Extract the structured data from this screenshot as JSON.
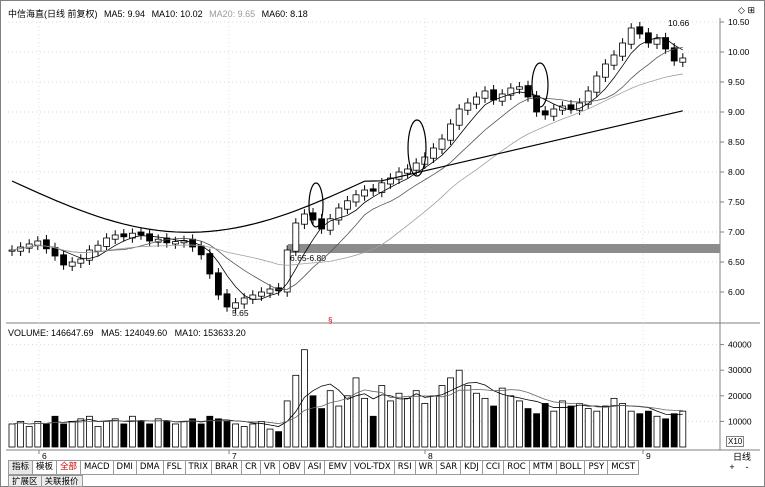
{
  "header": {
    "stock_name": "中信海直(日线 前复权)",
    "ma_items": [
      {
        "label": "MA5: 9.94",
        "color": "#000000"
      },
      {
        "label": "MA10: 10.02",
        "color": "#000000"
      },
      {
        "label": "MA20: 9.65",
        "color": "#9a9a9a"
      },
      {
        "label": "MA60: 8.18",
        "color": "#000000"
      }
    ],
    "window_icons": "◇ ⊞"
  },
  "price_axis": {
    "ticks": [
      "10.50",
      "10.00",
      "9.50",
      "9.00",
      "8.50",
      "8.00",
      "7.50",
      "7.00",
      "6.50",
      "6.00"
    ]
  },
  "annotations": {
    "low_label": "5.65",
    "high_label": "10.66",
    "zone_label": "6.65-6.80",
    "marker": "§"
  },
  "date_axis": {
    "labels": [
      "6",
      "7",
      "8",
      "9"
    ]
  },
  "volume": {
    "legend": [
      {
        "label": "VOLUME: 146647.69",
        "color": "#000000"
      },
      {
        "label": "MA5: 124049.60",
        "color": "#000000"
      },
      {
        "label": "MA10: 153633.20",
        "color": "#000000"
      }
    ],
    "ticks": [
      "40000",
      "30000",
      "20000",
      "10000"
    ],
    "scale_tag": "X10"
  },
  "period": {
    "label": "日线",
    "plus": "+",
    "minus": "-"
  },
  "indicator_tabs": [
    "指标",
    "模板",
    "全部",
    "MACD",
    "DMI",
    "DMA",
    "FSL",
    "TRIX",
    "BRAR",
    "CR",
    "VR",
    "OBV",
    "ASI",
    "EMV",
    "VOL-TDX",
    "RSI",
    "WR",
    "SAR",
    "KDJ",
    "CCI",
    "ROC",
    "MTM",
    "BOLL",
    "PSY",
    "MCST"
  ],
  "bottom_tabs": [
    "扩展区",
    "关联报价"
  ],
  "colors": {
    "up": "#000000",
    "down": "#000000",
    "ma_gray": "#a0a0a0",
    "zone": "#8c8c8c",
    "accent_red": "#d00000"
  }
}
